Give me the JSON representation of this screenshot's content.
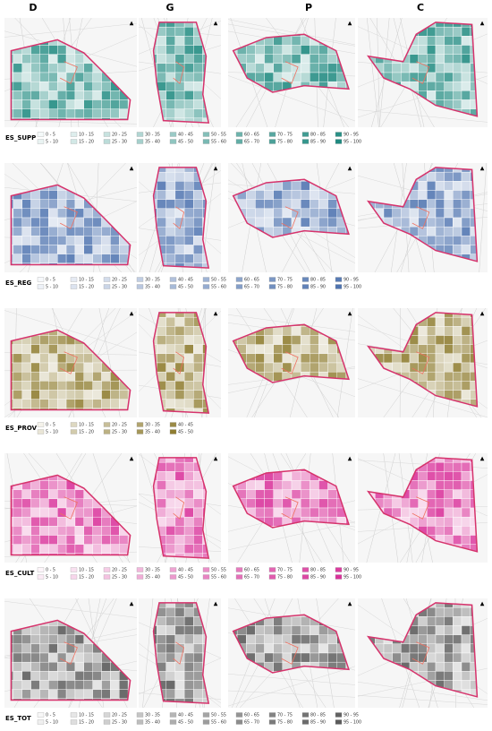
{
  "columns": [
    "D",
    "G",
    "P",
    "C"
  ],
  "rows": [
    {
      "label": "ES_SUPP",
      "color": "#1f8a80",
      "legend": [
        "0 - 5",
        "5 - 10",
        "10 - 15",
        "15 - 20",
        "20 - 25",
        "25 - 30",
        "30 - 35",
        "35 - 40",
        "40 - 45",
        "45 - 50",
        "50 - 55",
        "55 - 60",
        "60 - 65",
        "65 - 70",
        "70 - 75",
        "75 - 80",
        "80 - 85",
        "85 - 90",
        "90 - 95",
        "95 - 100"
      ]
    },
    {
      "label": "ES_REG",
      "color": "#4f74b0",
      "legend": [
        "0 - 5",
        "5 - 10",
        "10 - 15",
        "15 - 20",
        "20 - 25",
        "25 - 30",
        "30 - 35",
        "35 - 40",
        "40 - 45",
        "45 - 50",
        "50 - 55",
        "55 - 60",
        "60 - 65",
        "65 - 70",
        "70 - 75",
        "75 - 80",
        "80 - 85",
        "85 - 90",
        "90 - 95",
        "95 - 100"
      ]
    },
    {
      "label": "ES_PROV",
      "color": "#8f7d30",
      "legend": [
        "0 - 5",
        "5 - 10",
        "10 - 15",
        "15 - 20",
        "20 - 25",
        "25 - 30",
        "30 - 35",
        "35 - 40",
        "40 - 45",
        "45 - 50"
      ]
    },
    {
      "label": "ES_CULT",
      "color": "#d9329a",
      "legend": [
        "0 - 5",
        "5 - 10",
        "10 - 15",
        "15 - 20",
        "20 - 25",
        "25 - 30",
        "30 - 35",
        "35 - 40",
        "40 - 45",
        "45 - 50",
        "50 - 55",
        "55 - 60",
        "60 - 65",
        "65 - 70",
        "70 - 75",
        "75 - 80",
        "80 - 85",
        "85 - 90",
        "90 - 95",
        "95 - 100"
      ]
    },
    {
      "label": "ES_TOT",
      "color": "#5a5a5a",
      "legend": [
        "0 - 5",
        "5 - 10",
        "10 - 15",
        "15 - 20",
        "20 - 25",
        "25 - 30",
        "30 - 35",
        "35 - 40",
        "40 - 45",
        "45 - 50",
        "50 - 55",
        "55 - 60",
        "60 - 65",
        "65 - 70",
        "70 - 75",
        "75 - 80",
        "80 - 85",
        "85 - 90",
        "90 - 95",
        "95 - 100"
      ]
    }
  ]
}
